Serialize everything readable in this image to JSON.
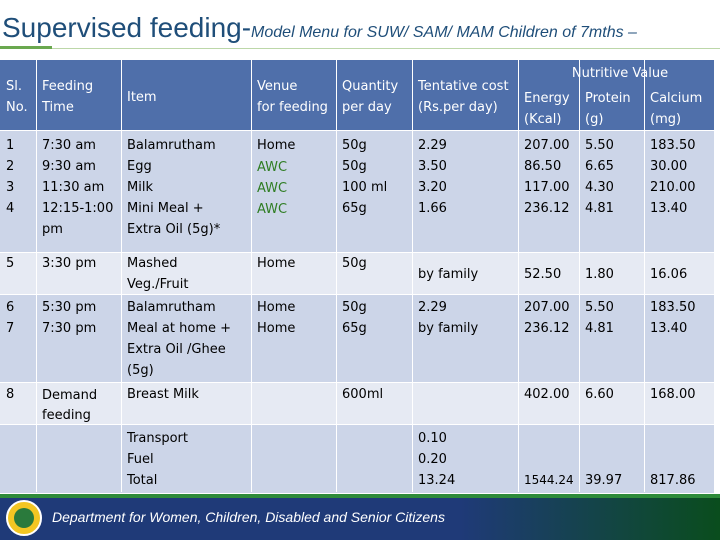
{
  "title": {
    "main": "Supervised feeding-",
    "sub": "Model Menu for SUW/ SAM/ MAM Children of 7mths –"
  },
  "table": {
    "headers": {
      "sl": "Sl.\nNo.",
      "time": "Feeding\nTime",
      "item": "Item",
      "venue": "Venue\nfor feeding",
      "quantity": "Quantity\nper day",
      "cost": "Tentative cost\n(Rs.per day)",
      "nutritive_value": "Nutritive Value",
      "energy": "Energy\n(Kcal)",
      "protein": "Protein\n(g)",
      "calcium": "Calcium\n(mg)"
    },
    "rows": [
      {
        "sl": "1\n2\n3\n4",
        "time": "7:30 am\n9:30 am\n11:30 am\n12:15-1:00\npm",
        "item": "Balamrutham\nEgg\nMilk\nMini Meal +\nExtra Oil (5g)*",
        "venue_top": "Home",
        "venue_rest": "AWC\nAWC\nAWC",
        "quantity": "50g\n50g\n100 ml\n65g",
        "cost": "2.29\n3.50\n3.20\n1.66",
        "energy": "207.00\n86.50\n117.00\n236.12",
        "protein": "5.50\n6.65\n4.30\n4.81",
        "calcium": "183.50\n30.00\n210.00\n13.40"
      },
      {
        "sl": "5",
        "time": "3:30 pm",
        "item": "Mashed\nVeg./Fruit",
        "venue": "Home",
        "quantity": "50g",
        "cost": "by family",
        "energy": "52.50",
        "protein": "1.80",
        "calcium": "16.06"
      },
      {
        "sl": "6\n7",
        "time": "5:30 pm\n7:30 pm",
        "item": "Balamrutham\nMeal at home +\nExtra Oil /Ghee\n(5g)",
        "venue": "Home\nHome",
        "quantity": "50g\n65g",
        "cost": "2.29\nby family",
        "energy": "207.00\n236.12",
        "protein": "5.50\n4.81",
        "calcium": "183.50\n13.40"
      },
      {
        "sl": "8",
        "time": "Demand\nfeeding",
        "item": "Breast Milk",
        "venue": "",
        "quantity": "600ml",
        "cost": "",
        "energy": "402.00",
        "protein": "6.60",
        "calcium": "168.00"
      },
      {
        "sl": "",
        "time": "",
        "item": "Transport\nFuel\nTotal",
        "venue": "",
        "quantity": "",
        "cost": "0.10\n0.20\n13.24",
        "energy": "\n\n1544.24",
        "protein": "\n\n39.97",
        "calcium": "\n\n817.86"
      }
    ]
  },
  "footer": {
    "department": "Department for Women, Children, Disabled and Senior Citizens"
  },
  "colors": {
    "title": "#1f4e79",
    "header_bg": "#4f6faa",
    "band_dark": "#ccd5e8",
    "band_light": "#e6eaf3",
    "awc_green": "#2f7d23",
    "footer_bg": "#1f3a78"
  }
}
